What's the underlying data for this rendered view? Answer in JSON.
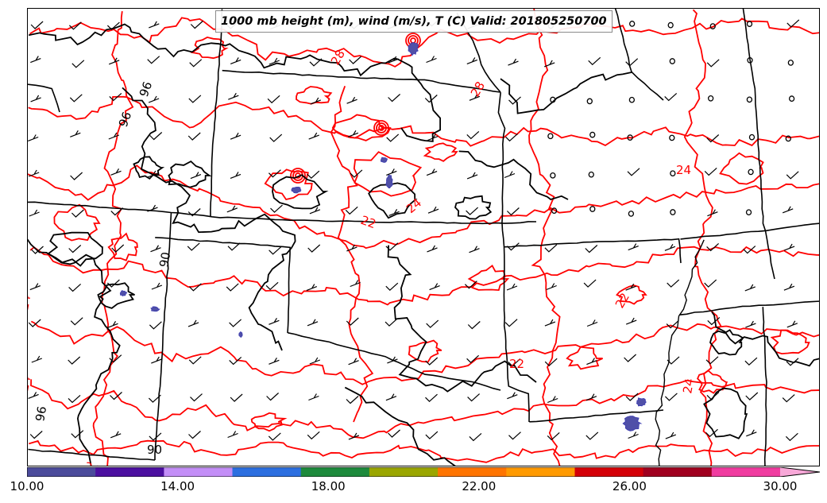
{
  "title": "1000 mb height (m), wind (m/s), T (C) Valid: 201805250700",
  "map": {
    "height_contour_color": "#000000",
    "temp_contour_color": "#ff0000",
    "state_border_color": "#000000",
    "temp_labels": [
      "28",
      "28",
      "24",
      "22",
      "24",
      "22",
      "22",
      "24",
      "24",
      "24",
      "24"
    ],
    "height_labels": [
      "96",
      "90",
      "96",
      "90",
      "96"
    ]
  },
  "colorbar": {
    "colors": [
      "#4b4b9b",
      "#4c0fa0",
      "#c38ef7",
      "#2c6fe0",
      "#1d8a3c",
      "#9aa600",
      "#ff7400",
      "#ff9a00",
      "#d40008",
      "#a0001f",
      "#f03ca0",
      "#f8a8d8"
    ],
    "tick_labels": [
      "10.00",
      "14.00",
      "18.00",
      "22.00",
      "26.00",
      "30.00"
    ],
    "range": [
      10,
      31
    ]
  }
}
